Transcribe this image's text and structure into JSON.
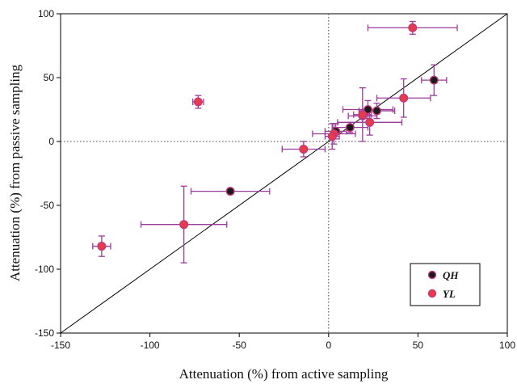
{
  "chart_data": {
    "type": "scatter",
    "title": "",
    "xlabel": "Attenuation (%) from active sampling",
    "ylabel": "Attenuation (%) from passive sampling",
    "xlim": [
      -150,
      100
    ],
    "ylim": [
      -150,
      100
    ],
    "xticks": [
      -150,
      -100,
      -50,
      0,
      50,
      100
    ],
    "yticks": [
      -150,
      -100,
      -50,
      0,
      50,
      100
    ],
    "xtick_labels": [
      "-150",
      "-100",
      "-50",
      "0",
      "50",
      "100"
    ],
    "ytick_labels": [
      "-150",
      "-100",
      "-50",
      "0",
      "50",
      "100"
    ],
    "reference_lines": [
      "x = 0 (dotted)",
      "y = 0 (dotted)",
      "1:1 line (solid)"
    ],
    "legend_position": "bottom-right",
    "error_bar_color": "#9b3c9b",
    "series": [
      {
        "name": "QH",
        "marker_fill": "#1a1a1a",
        "marker_edge": "#c0397a",
        "points": [
          {
            "x": 59,
            "y": 48,
            "xerr": 7,
            "yerr": 12
          },
          {
            "x": -55,
            "y": -39,
            "xerr": 22,
            "yerr": 2
          },
          {
            "x": 12,
            "y": 11,
            "xerr": 10,
            "yerr": 4
          },
          {
            "x": 22,
            "y": 25,
            "xerr": 14,
            "yerr": 7
          },
          {
            "x": 27,
            "y": 24,
            "xerr": 10,
            "yerr": 6
          },
          {
            "x": 4,
            "y": 8,
            "xerr": 6,
            "yerr": 6
          },
          {
            "x": 19,
            "y": 20,
            "xerr": 8,
            "yerr": 5
          }
        ]
      },
      {
        "name": "YL",
        "marker_fill": "#e83a4a",
        "marker_edge": "#c0397a",
        "points": [
          {
            "x": 47,
            "y": 89,
            "xerr": 25,
            "yerr": 5
          },
          {
            "x": -73,
            "y": 31,
            "xerr": 3,
            "yerr": 5
          },
          {
            "x": 42,
            "y": 34,
            "xerr": 15,
            "yerr": 15
          },
          {
            "x": 23,
            "y": 15,
            "xerr": 18,
            "yerr": 10
          },
          {
            "x": 19,
            "y": 21,
            "xerr": 5,
            "yerr": 21
          },
          {
            "x": 3,
            "y": 6,
            "xerr": 12,
            "yerr": 8
          },
          {
            "x": 2,
            "y": 4,
            "xerr": 4,
            "yerr": 10
          },
          {
            "x": -14,
            "y": -6,
            "xerr": 12,
            "yerr": 6
          },
          {
            "x": -81,
            "y": -65,
            "xerr": 24,
            "yerr": 30
          },
          {
            "x": -127,
            "y": -82,
            "xerr": 5,
            "yerr": 8
          }
        ]
      }
    ]
  }
}
